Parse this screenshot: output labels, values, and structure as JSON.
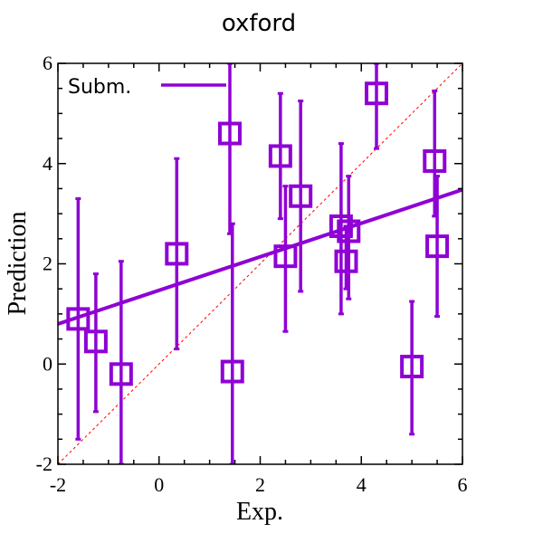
{
  "chart_data": {
    "type": "scatter",
    "title": "oxford",
    "xlabel": "Exp.",
    "ylabel": "Prediction",
    "xlim": [
      -2,
      6
    ],
    "ylim": [
      -2,
      6
    ],
    "x_ticks": [
      -2,
      0,
      2,
      4,
      6
    ],
    "y_ticks": [
      -2,
      0,
      2,
      4,
      6
    ],
    "x_tick_labels": [
      "-2",
      "0",
      "2",
      "4",
      "6"
    ],
    "y_tick_labels": [
      "-2",
      "0",
      "2",
      "4",
      "6"
    ],
    "grid": false,
    "legend_position": "top-left",
    "colors": {
      "series": "#8f00d4",
      "diagonal": "#ff0000",
      "axes": "#000000"
    },
    "series": [
      {
        "name": "Subm.",
        "marker": "square",
        "points": [
          {
            "x": -1.6,
            "y": 0.9,
            "ylo": -1.5,
            "yhi": 3.3
          },
          {
            "x": -1.25,
            "y": 0.45,
            "ylo": -0.95,
            "yhi": 1.8
          },
          {
            "x": -0.75,
            "y": -0.2,
            "ylo": -2.0,
            "yhi": 2.05
          },
          {
            "x": 0.35,
            "y": 2.2,
            "ylo": 0.3,
            "yhi": 4.1
          },
          {
            "x": 1.4,
            "y": 4.6,
            "ylo": 2.6,
            "yhi": 6.0
          },
          {
            "x": 1.45,
            "y": -0.15,
            "ylo": -2.0,
            "yhi": 2.8
          },
          {
            "x": 2.4,
            "y": 4.15,
            "ylo": 2.9,
            "yhi": 5.4
          },
          {
            "x": 2.5,
            "y": 2.15,
            "ylo": 0.65,
            "yhi": 3.55
          },
          {
            "x": 2.8,
            "y": 3.35,
            "ylo": 1.45,
            "yhi": 5.25
          },
          {
            "x": 3.6,
            "y": 2.75,
            "ylo": 1.0,
            "yhi": 4.4
          },
          {
            "x": 3.7,
            "y": 2.05,
            "ylo": 1.5,
            "yhi": 2.75
          },
          {
            "x": 3.75,
            "y": 2.65,
            "ylo": 1.3,
            "yhi": 3.75
          },
          {
            "x": 4.3,
            "y": 5.4,
            "ylo": 4.3,
            "yhi": 6.0
          },
          {
            "x": 5.0,
            "y": -0.05,
            "ylo": -1.4,
            "yhi": 1.25
          },
          {
            "x": 5.45,
            "y": 4.05,
            "ylo": 2.95,
            "yhi": 5.45
          },
          {
            "x": 5.5,
            "y": 2.35,
            "ylo": 0.95,
            "yhi": 3.75
          }
        ]
      }
    ],
    "fit_line": {
      "x": [
        -2,
        6
      ],
      "y": [
        0.8,
        3.48
      ]
    },
    "diagonal": {
      "x": [
        -2,
        6
      ],
      "y": [
        -2,
        6
      ]
    }
  }
}
